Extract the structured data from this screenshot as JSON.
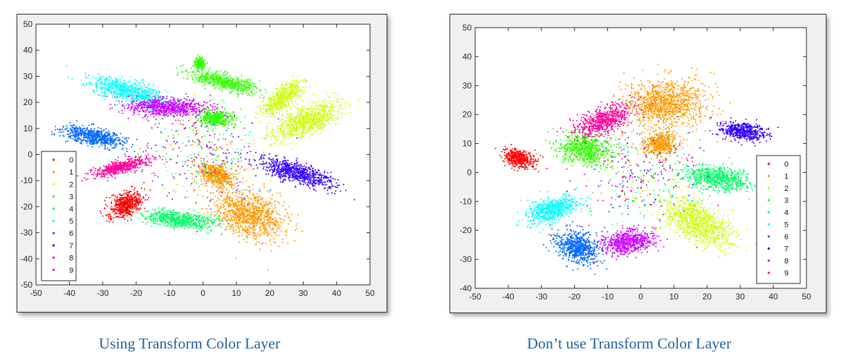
{
  "figure": {
    "left_caption": "Using Transform Color Layer",
    "right_caption": "Don’t use Transform Color Layer"
  },
  "classes": [
    "0",
    "1",
    "2",
    "3",
    "4",
    "5",
    "6",
    "7",
    "8",
    "9"
  ],
  "class_colors": [
    "#ff0000",
    "#ff9900",
    "#ccff00",
    "#33ff00",
    "#00ff66",
    "#00ffff",
    "#0066ff",
    "#3300ff",
    "#cc00ff",
    "#ff0099"
  ],
  "chart_data": [
    {
      "type": "scatter",
      "title": "",
      "xlabel": "",
      "ylabel": "",
      "xlim": [
        -50,
        50
      ],
      "ylim": [
        -50,
        50
      ],
      "xticks": [
        -50,
        -40,
        -30,
        -20,
        -10,
        0,
        10,
        20,
        30,
        40,
        50
      ],
      "yticks": [
        -50,
        -40,
        -30,
        -20,
        -10,
        0,
        10,
        20,
        30,
        40,
        50
      ],
      "grid": false,
      "legend_position": "bottom-left",
      "series": [
        {
          "name": "0",
          "color": "#ff0000",
          "clusters": [
            {
              "x": -23,
              "y": -19,
              "sx": 6,
              "sy": 4,
              "angle": 48
            }
          ]
        },
        {
          "name": "1",
          "color": "#ff9900",
          "clusters": [
            {
              "x": 14,
              "y": -23,
              "sx": 8,
              "sy": 11,
              "angle": 60
            },
            {
              "x": 4,
              "y": -8,
              "sx": 4,
              "sy": 6,
              "angle": 50
            }
          ]
        },
        {
          "name": "2",
          "color": "#ccff00",
          "clusters": [
            {
              "x": 31,
              "y": 13,
              "sx": 11,
              "sy": 5,
              "angle": 30
            },
            {
              "x": 24,
              "y": 22,
              "sx": 8,
              "sy": 3,
              "angle": 48
            }
          ]
        },
        {
          "name": "3",
          "color": "#33ff00",
          "clusters": [
            {
              "x": 6,
              "y": 28,
              "sx": 3,
              "sy": 10,
              "angle": 72
            },
            {
              "x": -1,
              "y": 35,
              "sx": 1.5,
              "sy": 2,
              "angle": 0
            },
            {
              "x": 4,
              "y": 14,
              "sx": 3,
              "sy": 5,
              "angle": 80
            }
          ]
        },
        {
          "name": "4",
          "color": "#00ff66",
          "clusters": [
            {
              "x": -7,
              "y": -25,
              "sx": 3,
              "sy": 11,
              "angle": 82
            }
          ]
        },
        {
          "name": "5",
          "color": "#00ffff",
          "clusters": [
            {
              "x": -22,
              "y": 24,
              "sx": 4,
              "sy": 12,
              "angle": 70
            }
          ]
        },
        {
          "name": "6",
          "color": "#0066ff",
          "clusters": [
            {
              "x": -33,
              "y": 7,
              "sx": 10,
              "sy": 3,
              "angle": -15
            }
          ]
        },
        {
          "name": "7",
          "color": "#3300ff",
          "clusters": [
            {
              "x": 28,
              "y": -7,
              "sx": 12,
              "sy": 3.5,
              "angle": -22
            }
          ]
        },
        {
          "name": "8",
          "color": "#cc00ff",
          "clusters": [
            {
              "x": -11,
              "y": 18,
              "sx": 3.5,
              "sy": 12,
              "angle": 88
            }
          ]
        },
        {
          "name": "9",
          "color": "#ff0099",
          "clusters": [
            {
              "x": -25,
              "y": -5,
              "sx": 9,
              "sy": 2.5,
              "angle": 18
            }
          ]
        }
      ]
    },
    {
      "type": "scatter",
      "title": "",
      "xlabel": "",
      "ylabel": "",
      "xlim": [
        -50,
        50
      ],
      "ylim": [
        -40,
        50
      ],
      "xticks": [
        -50,
        -40,
        -30,
        -20,
        -10,
        0,
        10,
        20,
        30,
        40,
        50
      ],
      "yticks": [
        -40,
        -30,
        -20,
        -10,
        0,
        10,
        20,
        30,
        40,
        50
      ],
      "grid": false,
      "legend_position": "right",
      "series": [
        {
          "name": "0",
          "color": "#ff0000",
          "clusters": [
            {
              "x": -37,
              "y": 5,
              "sx": 5,
              "sy": 3,
              "angle": -25
            }
          ]
        },
        {
          "name": "1",
          "color": "#ff9900",
          "clusters": [
            {
              "x": 8,
              "y": 24,
              "sx": 8,
              "sy": 12,
              "angle": 90
            },
            {
              "x": 6,
              "y": 10,
              "sx": 4,
              "sy": 5,
              "angle": 90
            }
          ]
        },
        {
          "name": "2",
          "color": "#ccff00",
          "clusters": [
            {
              "x": 17,
              "y": -17,
              "sx": 12,
              "sy": 6,
              "angle": -35
            }
          ]
        },
        {
          "name": "3",
          "color": "#33ff00",
          "clusters": [
            {
              "x": -17,
              "y": 8,
              "sx": 8,
              "sy": 5,
              "angle": -15
            }
          ]
        },
        {
          "name": "4",
          "color": "#00ff66",
          "clusters": [
            {
              "x": 23,
              "y": -2,
              "sx": 10,
              "sy": 4,
              "angle": -8
            }
          ]
        },
        {
          "name": "5",
          "color": "#00ffff",
          "clusters": [
            {
              "x": -27,
              "y": -13,
              "sx": 8,
              "sy": 4,
              "angle": 18
            }
          ]
        },
        {
          "name": "6",
          "color": "#0066ff",
          "clusters": [
            {
              "x": -19,
              "y": -26,
              "sx": 5,
              "sy": 7,
              "angle": 60
            }
          ]
        },
        {
          "name": "7",
          "color": "#3300ff",
          "clusters": [
            {
              "x": 31,
              "y": 14,
              "sx": 7,
              "sy": 3,
              "angle": -10
            }
          ]
        },
        {
          "name": "8",
          "color": "#cc00ff",
          "clusters": [
            {
              "x": -4,
              "y": -24,
              "sx": 4,
              "sy": 8,
              "angle": 100
            }
          ]
        },
        {
          "name": "9",
          "color": "#ff0099",
          "clusters": [
            {
              "x": -11,
              "y": 18,
              "sx": 4,
              "sy": 9,
              "angle": 115
            }
          ]
        }
      ]
    }
  ]
}
